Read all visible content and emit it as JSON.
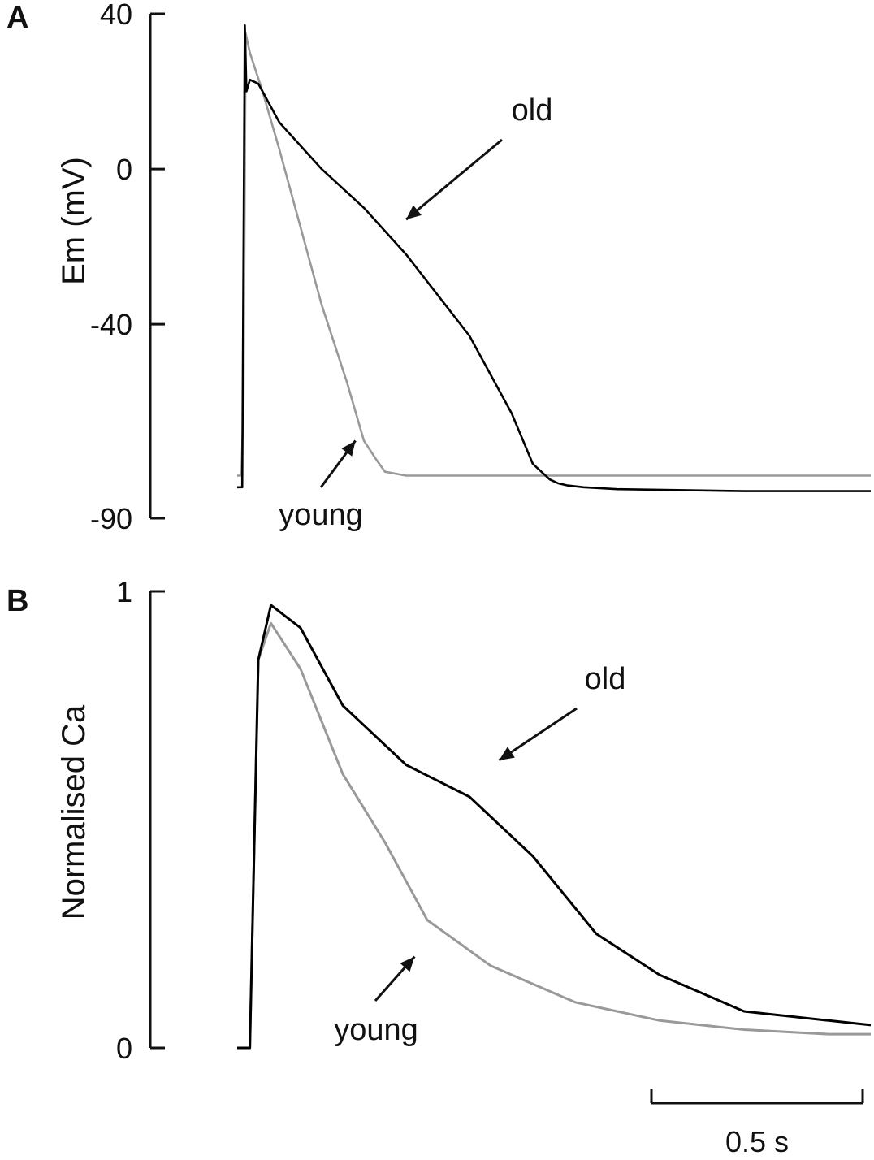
{
  "chart_data": [
    {
      "panel": "A",
      "type": "line",
      "ylabel": "Em (mV)",
      "ylim": [
        -90,
        40
      ],
      "yticks": [
        "40",
        "0",
        "-40",
        "-90"
      ],
      "ytick_values": [
        40,
        0,
        -40,
        -90
      ],
      "x_unit": "s",
      "xlim": [
        0,
        1.5
      ],
      "grid": false,
      "series": [
        {
          "name": "old",
          "color": "#000000",
          "x": [
            0.0,
            0.012,
            0.018,
            0.022,
            0.03,
            0.05,
            0.1,
            0.2,
            0.3,
            0.4,
            0.55,
            0.65,
            0.7,
            0.74,
            0.76,
            0.78,
            0.82,
            0.9,
            1.2,
            1.5
          ],
          "y": [
            -82,
            -82,
            37,
            20,
            23,
            22,
            12,
            0,
            -10,
            -22,
            -43,
            -63,
            -76,
            -80,
            -81,
            -81.5,
            -82,
            -82.5,
            -83,
            -83
          ]
        },
        {
          "name": "young",
          "color": "#999999",
          "x": [
            0.0,
            0.01,
            0.015,
            0.02,
            0.03,
            0.06,
            0.1,
            0.15,
            0.2,
            0.26,
            0.3,
            0.33,
            0.35,
            0.4,
            0.6,
            1.0,
            1.5
          ],
          "y": [
            -79,
            -79,
            -60,
            35,
            30,
            20,
            5,
            -15,
            -35,
            -55,
            -70,
            -75,
            -78,
            -79,
            -79,
            -79,
            -79
          ]
        }
      ],
      "annotations": [
        {
          "text": "old",
          "target": [
            0.4,
            -13
          ]
        },
        {
          "text": "young",
          "target": [
            0.28,
            -70
          ]
        }
      ]
    },
    {
      "panel": "B",
      "type": "line",
      "ylabel": "Normalised Ca",
      "ylim": [
        0,
        1
      ],
      "yticks": [
        "1",
        "0"
      ],
      "ytick_values": [
        1,
        0
      ],
      "x_unit": "s",
      "xlim": [
        0,
        1.5
      ],
      "grid": false,
      "series": [
        {
          "name": "old",
          "color": "#000000",
          "x": [
            0.0,
            0.03,
            0.05,
            0.08,
            0.15,
            0.25,
            0.4,
            0.55,
            0.7,
            0.85,
            1.0,
            1.2,
            1.4,
            1.5
          ],
          "y": [
            0.0,
            0.0,
            0.85,
            0.97,
            0.92,
            0.75,
            0.62,
            0.55,
            0.42,
            0.25,
            0.16,
            0.08,
            0.06,
            0.05
          ]
        },
        {
          "name": "young",
          "color": "#999999",
          "x": [
            0.0,
            0.03,
            0.05,
            0.08,
            0.15,
            0.25,
            0.35,
            0.45,
            0.6,
            0.8,
            1.0,
            1.2,
            1.4,
            1.5
          ],
          "y": [
            0.0,
            0.0,
            0.85,
            0.93,
            0.83,
            0.6,
            0.45,
            0.28,
            0.18,
            0.1,
            0.06,
            0.04,
            0.03,
            0.03
          ]
        }
      ],
      "annotations": [
        {
          "text": "old",
          "target": [
            0.62,
            0.63
          ]
        },
        {
          "text": "young",
          "target": [
            0.42,
            0.2
          ]
        }
      ]
    }
  ],
  "scalebar": {
    "label": "0.5 s",
    "duration": 0.5
  },
  "panel_labels": [
    "A",
    "B"
  ]
}
